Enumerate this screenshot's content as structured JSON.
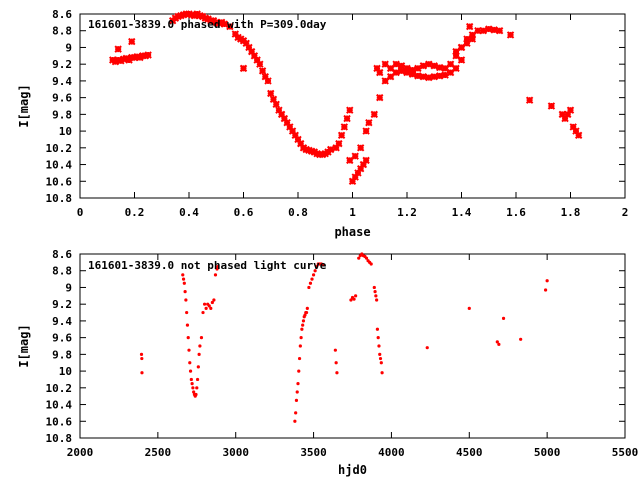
{
  "chart_data": [
    {
      "type": "scatter",
      "title": "161601-3839.0 phased with P=309.0day",
      "xlabel": "phase",
      "ylabel": "I[mag]",
      "xlim": [
        0,
        2
      ],
      "ylim": [
        10.8,
        8.6
      ],
      "y_reversed": true,
      "xticks": [
        0,
        0.2,
        0.4,
        0.6,
        0.8,
        1,
        1.2,
        1.4,
        1.6,
        1.8,
        2
      ],
      "yticks": [
        8.6,
        8.8,
        9,
        9.2,
        9.4,
        9.6,
        9.8,
        10,
        10.2,
        10.4,
        10.6,
        10.8
      ],
      "marker_color": "#ff0000",
      "marker": "cross",
      "x": [
        0.12,
        0.13,
        0.14,
        0.15,
        0.16,
        0.17,
        0.18,
        0.19,
        0.2,
        0.21,
        0.22,
        0.23,
        0.24,
        0.25,
        0.14,
        0.19,
        0.34,
        0.35,
        0.36,
        0.37,
        0.38,
        0.39,
        0.4,
        0.41,
        0.42,
        0.43,
        0.44,
        0.45,
        0.46,
        0.47,
        0.48,
        0.49,
        0.5,
        0.51,
        0.52,
        0.53,
        0.55,
        0.57,
        0.58,
        0.59,
        0.6,
        0.61,
        0.62,
        0.63,
        0.64,
        0.65,
        0.66,
        0.67,
        0.68,
        0.69,
        0.6,
        0.7,
        0.71,
        0.72,
        0.73,
        0.74,
        0.75,
        0.76,
        0.77,
        0.78,
        0.79,
        0.8,
        0.81,
        0.82,
        0.83,
        0.84,
        0.85,
        0.86,
        0.87,
        0.88,
        0.89,
        0.9,
        0.91,
        0.92,
        0.94,
        0.95,
        0.96,
        0.97,
        0.98,
        0.99,
        1.0,
        1.01,
        1.02,
        1.03,
        1.04,
        1.05,
        0.99,
        1.01,
        1.03,
        1.05,
        1.06,
        1.08,
        1.1,
        1.12,
        1.14,
        1.16,
        1.18,
        1.2,
        1.22,
        1.24,
        1.26,
        1.28,
        1.3,
        1.32,
        1.34,
        1.36,
        1.38,
        1.4,
        1.09,
        1.1,
        1.12,
        1.14,
        1.16,
        1.18,
        1.2,
        1.22,
        1.24,
        1.26,
        1.28,
        1.3,
        1.32,
        1.34,
        1.36,
        1.38,
        1.4,
        1.42,
        1.44,
        1.46,
        1.48,
        1.5,
        1.52,
        1.54,
        1.58,
        1.38,
        1.4,
        1.42,
        1.44,
        1.43,
        1.65,
        1.73,
        1.77,
        1.78,
        1.79,
        1.8,
        1.81,
        1.82,
        1.83
      ],
      "y": [
        9.15,
        9.17,
        9.15,
        9.16,
        9.14,
        9.13,
        9.15,
        9.12,
        9.12,
        9.11,
        9.12,
        9.1,
        9.1,
        9.09,
        9.02,
        8.93,
        8.68,
        8.65,
        8.63,
        8.62,
        8.61,
        8.6,
        8.6,
        8.61,
        8.62,
        8.6,
        8.62,
        8.63,
        8.65,
        8.66,
        8.68,
        8.68,
        8.7,
        8.71,
        8.7,
        8.72,
        8.75,
        8.84,
        8.88,
        8.9,
        8.92,
        8.95,
        9.0,
        9.05,
        9.1,
        9.15,
        9.2,
        9.28,
        9.35,
        9.4,
        9.25,
        9.55,
        9.62,
        9.68,
        9.75,
        9.8,
        9.85,
        9.9,
        9.95,
        10.0,
        10.05,
        10.1,
        10.15,
        10.2,
        10.22,
        10.23,
        10.24,
        10.25,
        10.27,
        10.28,
        10.28,
        10.27,
        10.25,
        10.22,
        10.2,
        10.15,
        10.05,
        9.95,
        9.85,
        9.75,
        10.6,
        10.55,
        10.5,
        10.45,
        10.4,
        10.35,
        10.35,
        10.3,
        10.2,
        10.0,
        9.9,
        9.8,
        9.6,
        9.4,
        9.35,
        9.3,
        9.28,
        9.3,
        9.32,
        9.34,
        9.35,
        9.36,
        9.35,
        9.34,
        9.33,
        9.3,
        9.25,
        9.15,
        9.25,
        9.3,
        9.2,
        9.25,
        9.2,
        9.22,
        9.25,
        9.27,
        9.25,
        9.22,
        9.2,
        9.22,
        9.24,
        9.25,
        9.2,
        9.1,
        9.0,
        8.9,
        8.85,
        8.8,
        8.8,
        8.78,
        8.79,
        8.8,
        8.85,
        9.05,
        9.0,
        8.95,
        8.9,
        8.75,
        9.63,
        9.7,
        9.8,
        9.85,
        9.8,
        9.75,
        9.95,
        10.0,
        10.05
      ]
    },
    {
      "type": "scatter",
      "title": "161601-3839.0 not phased light curve",
      "xlabel": "hjd0",
      "ylabel": "I[mag]",
      "xlim": [
        2000,
        5500
      ],
      "ylim": [
        10.8,
        8.6
      ],
      "y_reversed": true,
      "xticks": [
        2000,
        2500,
        3000,
        3500,
        4000,
        4500,
        5000,
        5500
      ],
      "yticks": [
        8.6,
        8.8,
        9,
        9.2,
        9.4,
        9.6,
        9.8,
        10,
        10.2,
        10.4,
        10.6,
        10.8
      ],
      "marker_color": "#ff0000",
      "marker": "dot",
      "x": [
        2395,
        2397,
        2398,
        2660,
        2665,
        2670,
        2675,
        2680,
        2685,
        2690,
        2695,
        2700,
        2705,
        2710,
        2715,
        2720,
        2725,
        2730,
        2735,
        2740,
        2745,
        2750,
        2755,
        2760,
        2765,
        2770,
        2780,
        2790,
        2800,
        2810,
        2820,
        2830,
        2840,
        2850,
        2860,
        2870,
        2880,
        2885,
        3380,
        3385,
        3390,
        3395,
        3400,
        3405,
        3410,
        3415,
        3420,
        3425,
        3430,
        3435,
        3440,
        3445,
        3450,
        3455,
        3460,
        3470,
        3480,
        3490,
        3500,
        3510,
        3520,
        3530,
        3540,
        3550,
        3560,
        3640,
        3645,
        3650,
        3740,
        3750,
        3760,
        3770,
        3790,
        3800,
        3810,
        3820,
        3830,
        3840,
        3850,
        3860,
        3870,
        3890,
        3895,
        3900,
        3905,
        3910,
        3915,
        3920,
        3925,
        3930,
        3935,
        3940,
        4230,
        4500,
        4680,
        4690,
        4720,
        4830,
        5000,
        4990
      ],
      "y": [
        9.8,
        9.85,
        10.02,
        8.85,
        8.9,
        8.95,
        9.05,
        9.15,
        9.3,
        9.45,
        9.6,
        9.75,
        9.9,
        10.0,
        10.1,
        10.15,
        10.2,
        10.25,
        10.28,
        10.3,
        10.28,
        10.2,
        10.1,
        9.95,
        9.8,
        9.7,
        9.6,
        9.3,
        9.2,
        9.25,
        9.2,
        9.22,
        9.25,
        9.18,
        9.15,
        8.85,
        8.78,
        8.75,
        10.6,
        10.5,
        10.35,
        10.25,
        10.15,
        10.0,
        9.85,
        9.7,
        9.6,
        9.5,
        9.45,
        9.4,
        9.35,
        9.33,
        9.3,
        9.3,
        9.25,
        9.0,
        8.95,
        8.9,
        8.85,
        8.8,
        8.75,
        8.72,
        8.72,
        8.72,
        8.73,
        9.75,
        9.9,
        10.02,
        9.15,
        9.12,
        9.14,
        9.1,
        8.65,
        8.62,
        8.6,
        8.62,
        8.63,
        8.65,
        8.68,
        8.7,
        8.72,
        9.0,
        9.05,
        9.1,
        9.15,
        9.5,
        9.6,
        9.7,
        9.8,
        9.85,
        9.9,
        10.02,
        9.72,
        9.25,
        9.65,
        9.68,
        9.37,
        9.62,
        8.92,
        9.03
      ]
    }
  ]
}
